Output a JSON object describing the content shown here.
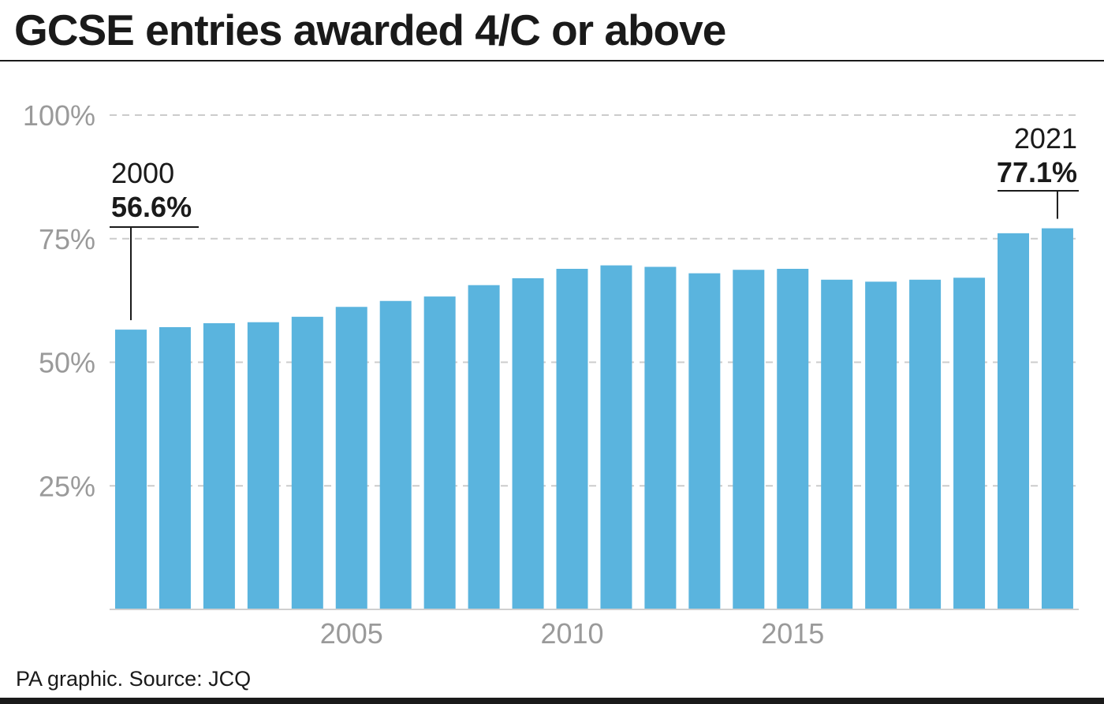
{
  "title": "GCSE entries awarded 4/C or above",
  "source": "PA graphic. Source: JCQ",
  "colors": {
    "bar": "#5ab4de",
    "grid": "#cccccc",
    "axis": "#9a9a9a",
    "text": "#1a1a1a"
  },
  "chart_data": {
    "type": "bar",
    "title": "GCSE entries awarded 4/C or above",
    "xlabel": "",
    "ylabel": "",
    "x": [
      2000,
      2001,
      2002,
      2003,
      2004,
      2005,
      2006,
      2007,
      2008,
      2009,
      2010,
      2011,
      2012,
      2013,
      2014,
      2015,
      2016,
      2017,
      2018,
      2019,
      2020,
      2021
    ],
    "values": [
      56.6,
      57.1,
      57.9,
      58.1,
      59.2,
      61.2,
      62.4,
      63.3,
      65.6,
      67.0,
      68.9,
      69.6,
      69.3,
      68.0,
      68.7,
      68.9,
      66.7,
      66.3,
      66.7,
      67.1,
      76.1,
      77.1
    ],
    "ylim": [
      0,
      100
    ],
    "yticks": [
      25,
      50,
      75,
      100
    ],
    "ytick_labels": [
      "25%",
      "50%",
      "75%",
      "100%"
    ],
    "xticks": [
      2005,
      2010,
      2015
    ],
    "xtick_labels": [
      "2005",
      "2010",
      "2015"
    ],
    "grid": true,
    "annotations": [
      {
        "year": "2000",
        "value": "56.6%",
        "x": 2000,
        "y": 56.6
      },
      {
        "year": "2021",
        "value": "77.1%",
        "x": 2021,
        "y": 77.1
      }
    ]
  }
}
